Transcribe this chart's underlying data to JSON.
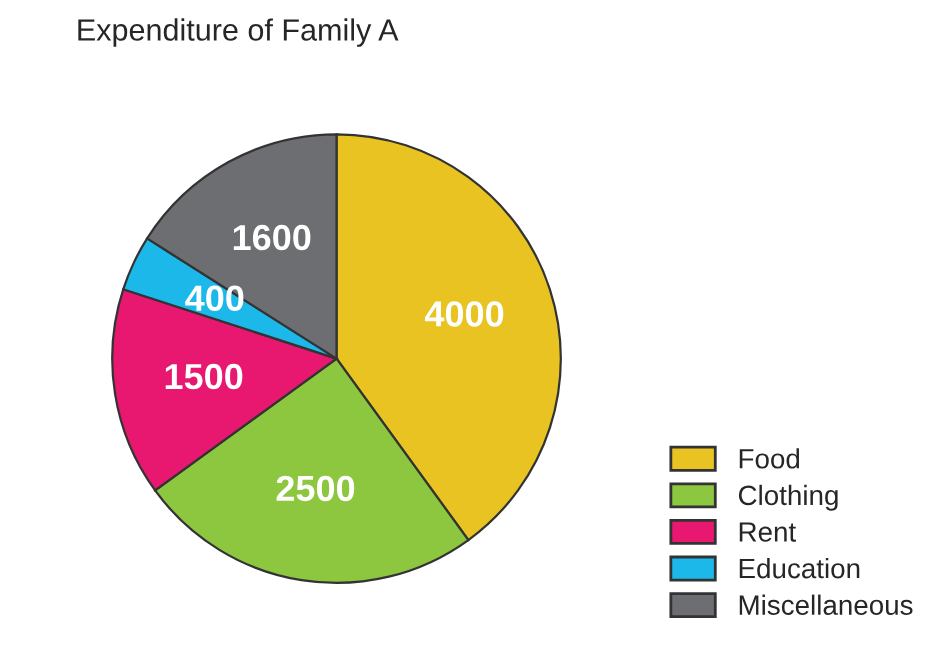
{
  "chart_data": {
    "type": "pie",
    "title": "Expenditure of Family A",
    "categories": [
      "Food",
      "Clothing",
      "Rent",
      "Education",
      "Miscellaneous"
    ],
    "values": [
      4000,
      2500,
      1500,
      400,
      1600
    ],
    "colors": [
      "#e8c321",
      "#8dc63f",
      "#e8176f",
      "#1cb8ea",
      "#6d6e71"
    ],
    "data_labels": true,
    "legend": "bottom right"
  }
}
